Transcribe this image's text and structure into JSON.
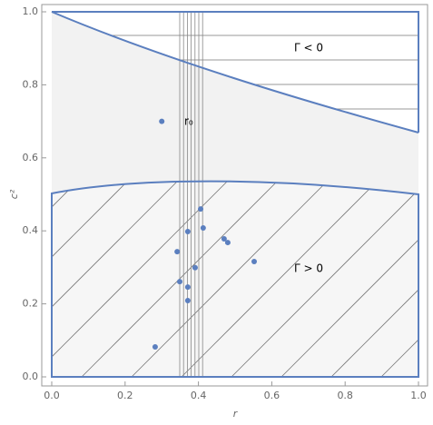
{
  "chart_data": {
    "type": "scatter",
    "xlabel": "r",
    "ylabel": "c²",
    "annotations": [
      "Γ < 0",
      "Γ > 0",
      "r₀"
    ],
    "color": "#5b7fbf",
    "x": [
      0.3,
      0.406,
      0.413,
      0.371,
      0.47,
      0.48,
      0.342,
      0.552,
      0.391,
      0.349,
      0.371,
      0.371,
      0.282
    ],
    "values": [
      0.7,
      0.46,
      0.408,
      0.398,
      0.378,
      0.368,
      0.343,
      0.316,
      0.299,
      0.261,
      0.246,
      0.209,
      0.082
    ],
    "xlim": [
      0,
      1
    ],
    "ylim": [
      0,
      1
    ],
    "xticks": [
      {
        "value": 0,
        "label": "0.0"
      },
      0.2,
      0.4,
      0.6,
      0.8,
      {
        "value": 1,
        "label": "1.0"
      }
    ],
    "yticks": [
      {
        "value": 0,
        "label": "0.0"
      },
      0.2,
      0.4,
      0.6,
      0.8,
      {
        "value": 1,
        "label": "1.0"
      }
    ]
  }
}
